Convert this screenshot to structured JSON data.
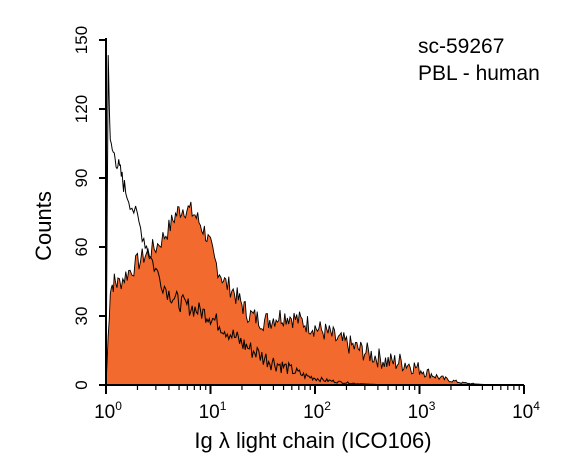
{
  "chart_data": {
    "type": "area",
    "title": "",
    "xlabel": "Ig λ light chain (ICO106)",
    "ylabel": "Counts",
    "x_scale": "log",
    "xlim": [
      1,
      10000
    ],
    "ylim": [
      0,
      150
    ],
    "y_ticks": [
      "0",
      "30",
      "60",
      "90",
      "120",
      "150"
    ],
    "x_ticks": [
      {
        "base": "10",
        "exp": "0"
      },
      {
        "base": "10",
        "exp": "1"
      },
      {
        "base": "10",
        "exp": "2"
      },
      {
        "base": "10",
        "exp": "3"
      },
      {
        "base": "10",
        "exp": "4"
      }
    ],
    "annotations": [
      "sc-59267",
      "PBL - human"
    ],
    "grid": false,
    "legend": "none",
    "colors": {
      "sample_fill": "#f26a2e",
      "line": "#000000"
    },
    "series": [
      {
        "role": "sample (filled)",
        "x": [
          1.0,
          1.1,
          1.2,
          1.3,
          1.5,
          1.7,
          2.0,
          2.3,
          2.6,
          3.0,
          3.5,
          4.0,
          4.5,
          5.0,
          5.6,
          6.3,
          7.1,
          8.0,
          9.0,
          10,
          11,
          12.6,
          14,
          16,
          18,
          20,
          22,
          25,
          28,
          32,
          36,
          40,
          45,
          50,
          56,
          63,
          71,
          80,
          90,
          100,
          112,
          126,
          141,
          158,
          178,
          200,
          224,
          251,
          282,
          316,
          355,
          398,
          447,
          501,
          562,
          631,
          708,
          794,
          891,
          1000,
          1122,
          1259,
          1413,
          1585,
          1778,
          1995,
          2239,
          2512,
          2818,
          3162,
          3548,
          3981,
          4467,
          5012,
          5623,
          6310,
          7079,
          7943,
          8913,
          10000
        ],
        "y": [
          0,
          42,
          45,
          44,
          47,
          50,
          53,
          56,
          58,
          60,
          64,
          68,
          73,
          76,
          77,
          76,
          74,
          70,
          66,
          60,
          54,
          48,
          44,
          42,
          38,
          35,
          32,
          30,
          29,
          28,
          28,
          29,
          30,
          30,
          30,
          29,
          28,
          27,
          26,
          25,
          24,
          23,
          22,
          20,
          19,
          18,
          17,
          16,
          15,
          14,
          13,
          12,
          11,
          10,
          10,
          10,
          10,
          9,
          8,
          7,
          6,
          5,
          4,
          3,
          2.5,
          2,
          1.5,
          1,
          0.8,
          0.6,
          0.4,
          0.3,
          0.2,
          0.1,
          0.1,
          0,
          0,
          0,
          0,
          0
        ]
      },
      {
        "role": "control (outline)",
        "x": [
          1.0,
          1.05,
          1.1,
          1.2,
          1.3,
          1.4,
          1.5,
          1.7,
          2.0,
          2.3,
          2.6,
          3.0,
          3.5,
          4.0,
          4.5,
          5.0,
          5.6,
          6.3,
          7.1,
          8.0,
          9.0,
          10,
          11,
          12.6,
          14,
          16,
          18,
          20,
          22,
          25,
          28,
          32,
          36,
          40,
          45,
          50,
          56,
          63,
          71,
          80,
          90,
          100,
          112,
          126,
          141,
          158,
          178,
          200,
          224,
          251,
          282,
          316,
          355,
          398,
          447,
          501,
          631,
          794,
          1000,
          1259,
          1585,
          1995,
          2512,
          3162,
          3981,
          5012,
          10000
        ],
        "y": [
          0,
          143,
          104,
          100,
          96,
          91,
          86,
          80,
          72,
          64,
          57,
          50,
          44,
          40,
          38,
          36,
          35,
          34,
          33,
          32,
          31,
          30,
          28,
          26,
          24,
          22,
          20,
          18,
          17,
          15,
          14,
          12,
          11,
          10,
          9,
          8,
          7,
          6,
          5,
          4,
          3.5,
          3,
          2.5,
          2,
          1.8,
          1.5,
          1.2,
          1,
          0.8,
          0.6,
          0.5,
          0.4,
          0.3,
          0.2,
          0.1,
          0,
          0,
          0,
          0,
          0,
          0,
          0,
          0,
          0,
          0,
          0,
          0
        ]
      }
    ]
  }
}
